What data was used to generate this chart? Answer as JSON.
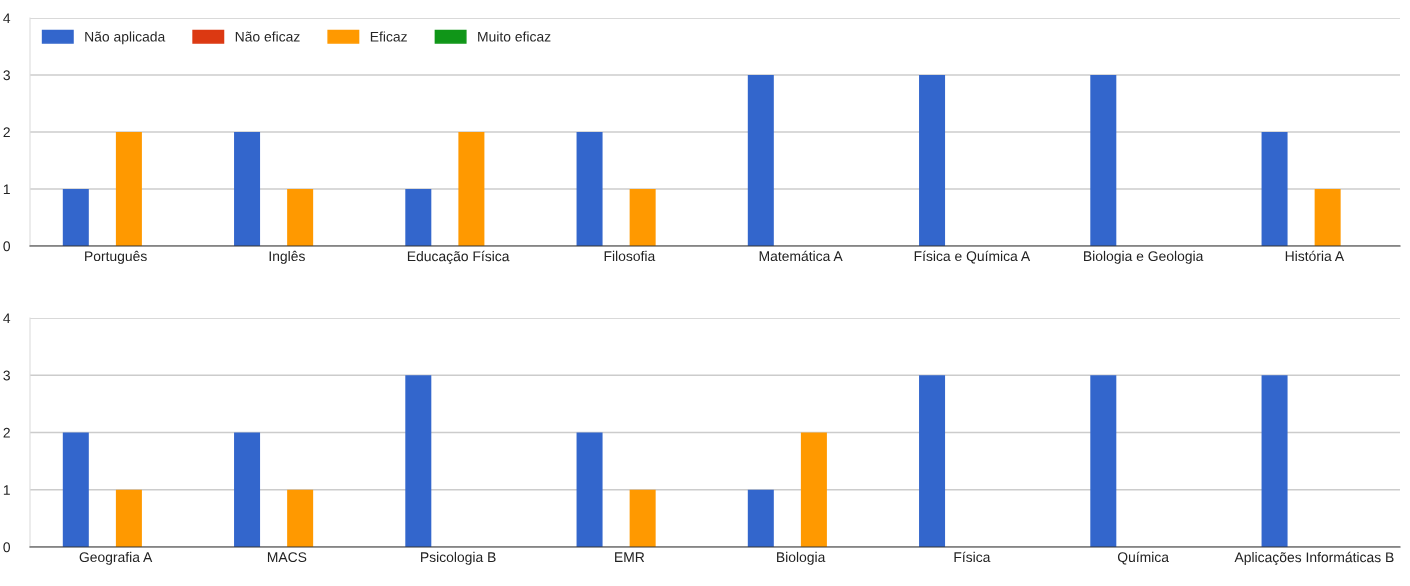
{
  "chart_data": [
    {
      "type": "bar",
      "categories": [
        "Português",
        "Inglês",
        "Educação Física",
        "Filosofia",
        "Matemática A",
        "Física e Química A",
        "Biologia e Geologia",
        "História A"
      ],
      "series": [
        {
          "name": "Não aplicada",
          "color": "#3366cc",
          "values": [
            1,
            2,
            1,
            2,
            3,
            3,
            3,
            2
          ]
        },
        {
          "name": "Não eficaz",
          "color": "#dc3912",
          "values": [
            0,
            0,
            0,
            0,
            0,
            0,
            0,
            0
          ]
        },
        {
          "name": "Eficaz",
          "color": "#ff9900",
          "values": [
            2,
            1,
            2,
            1,
            0,
            0,
            0,
            1
          ]
        },
        {
          "name": "Muito eficaz",
          "color": "#109618",
          "values": [
            0,
            0,
            0,
            0,
            0,
            0,
            0,
            0
          ]
        }
      ],
      "ylim": [
        0,
        4
      ],
      "yticks": [
        0,
        1,
        2,
        3,
        4
      ],
      "grid": "y",
      "legend": "top left"
    },
    {
      "type": "bar",
      "categories": [
        "Geografia A",
        "MACS",
        "Psicologia B",
        "EMR",
        "Biologia",
        "Física",
        "Química",
        "Aplicações Informáticas B"
      ],
      "series": [
        {
          "color": "#3366cc",
          "values": [
            2,
            2,
            3,
            2,
            1,
            3,
            3,
            3
          ]
        },
        {
          "color": "#dc3912",
          "values": [
            0,
            0,
            0,
            0,
            0,
            0,
            0,
            0
          ]
        },
        {
          "color": "#ff9900",
          "values": [
            1,
            1,
            0,
            1,
            2,
            0,
            0,
            0
          ]
        },
        {
          "color": "#109618",
          "values": [
            0,
            0,
            0,
            0,
            0,
            0,
            0,
            0
          ]
        }
      ],
      "ylim": [
        0,
        4
      ],
      "yticks": [
        0,
        1,
        2,
        3,
        4
      ],
      "grid": "y"
    }
  ]
}
